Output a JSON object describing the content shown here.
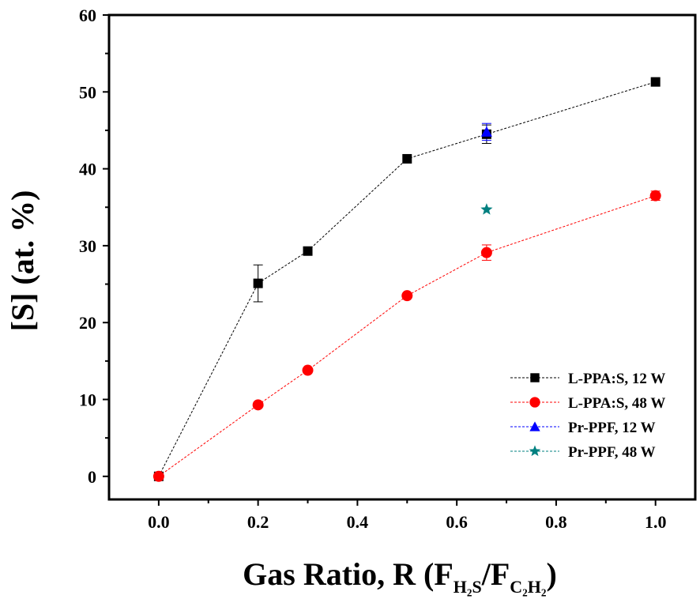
{
  "chart_data": {
    "type": "scatter",
    "xlabel": {
      "main": "Gas Ratio, R (F",
      "sub1": "H₂S",
      "mid": "/F",
      "sub2": "C₂H₂",
      "end": ")"
    },
    "ylabel": "[S] (at. %)",
    "xlim": [
      -0.1,
      1.08
    ],
    "ylim": [
      -3,
      60
    ],
    "x_ticks": [
      0.0,
      0.2,
      0.4,
      0.6,
      0.8,
      1.0
    ],
    "x_tick_labels": [
      "0.0",
      "0.2",
      "0.4",
      "0.6",
      "0.8",
      "1.0"
    ],
    "y_ticks": [
      0,
      10,
      20,
      30,
      40,
      50,
      60
    ],
    "y_tick_labels": [
      "0",
      "10",
      "20",
      "30",
      "40",
      "50",
      "60"
    ],
    "grid": false,
    "legend_position": "bottom-right",
    "series": [
      {
        "name": "L-PPA:S, 12 W",
        "marker": "square",
        "color": "#000000",
        "line": "dashed",
        "x": [
          0.0,
          0.2,
          0.3,
          0.5,
          0.66,
          1.0
        ],
        "y": [
          0.0,
          25.1,
          29.3,
          41.3,
          44.5,
          51.3
        ],
        "yerr": [
          0.0,
          2.4,
          0.0,
          0.0,
          1.2,
          0.0
        ]
      },
      {
        "name": "L-PPA:S, 48 W",
        "marker": "circle",
        "color": "#ff0000",
        "line": "dashed",
        "x": [
          0.0,
          0.2,
          0.3,
          0.5,
          0.66,
          1.0
        ],
        "y": [
          0.0,
          9.3,
          13.8,
          23.5,
          29.1,
          36.5
        ],
        "yerr": [
          0.0,
          0.0,
          0.0,
          0.0,
          1.0,
          0.6
        ]
      },
      {
        "name": "Pr-PPF, 12 W",
        "marker": "triangle",
        "color": "#0000ff",
        "line": "dashed",
        "x": [
          0.66
        ],
        "y": [
          44.8
        ],
        "yerr": [
          1.1
        ]
      },
      {
        "name": "Pr-PPF, 48 W",
        "marker": "star",
        "color": "#008080",
        "line": "dashed",
        "x": [
          0.66
        ],
        "y": [
          34.7
        ],
        "yerr": [
          0.0
        ]
      }
    ]
  }
}
